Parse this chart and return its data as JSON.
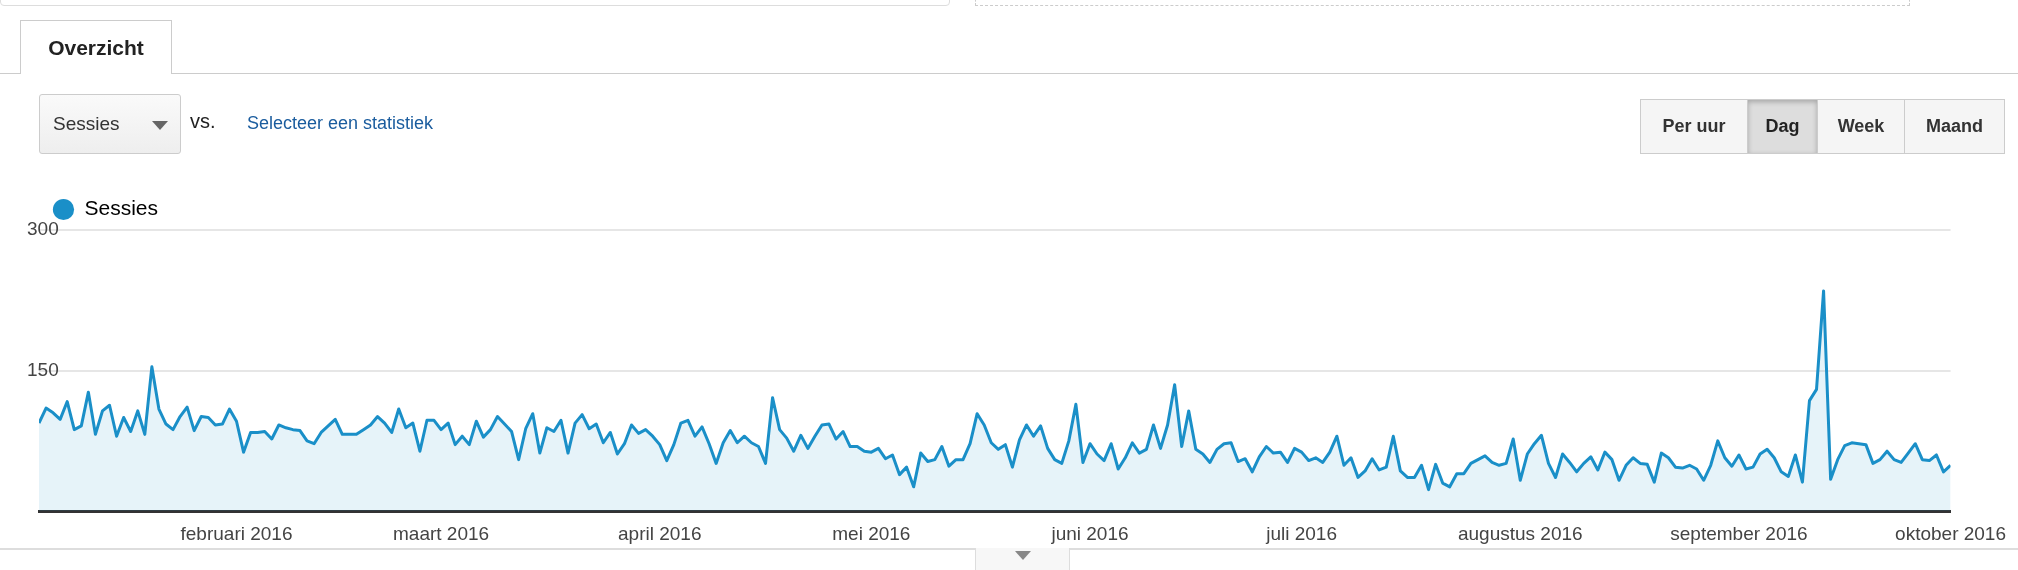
{
  "chart_data": {
    "type": "area",
    "annotations": [
      "Overzicht",
      "Sessies",
      "vs.",
      "Selecteer een statistiek",
      "Per uur",
      "Dag",
      "Week",
      "Maand"
    ],
    "x": [
      "2016-01-04",
      "2016-01-05",
      "2016-01-06",
      "2016-01-07",
      "2016-01-08",
      "2016-01-09",
      "2016-01-10",
      "2016-01-11",
      "2016-01-12",
      "2016-01-13",
      "2016-01-14",
      "2016-01-15",
      "2016-01-16",
      "2016-01-17",
      "2016-01-18",
      "2016-01-19",
      "2016-01-20",
      "2016-01-21",
      "2016-01-22",
      "2016-01-23",
      "2016-01-24",
      "2016-01-25",
      "2016-01-26",
      "2016-01-27",
      "2016-01-28",
      "2016-01-29",
      "2016-01-30",
      "2016-01-31",
      "2016-02-01",
      "2016-02-02",
      "2016-02-03",
      "2016-02-04",
      "2016-02-05",
      "2016-02-06",
      "2016-02-07",
      "2016-02-08",
      "2016-02-09",
      "2016-02-10",
      "2016-02-11",
      "2016-02-12",
      "2016-02-13",
      "2016-02-14",
      "2016-02-15",
      "2016-02-16",
      "2016-02-17",
      "2016-02-18",
      "2016-02-19",
      "2016-02-20",
      "2016-02-21",
      "2016-02-22",
      "2016-02-23",
      "2016-02-24",
      "2016-02-25",
      "2016-02-26",
      "2016-02-27",
      "2016-02-28",
      "2016-02-29",
      "2016-03-01",
      "2016-03-02",
      "2016-03-03",
      "2016-03-04",
      "2016-03-05",
      "2016-03-06",
      "2016-03-07",
      "2016-03-08",
      "2016-03-09",
      "2016-03-10",
      "2016-03-11",
      "2016-03-12",
      "2016-03-13",
      "2016-03-14",
      "2016-03-15",
      "2016-03-16",
      "2016-03-17",
      "2016-03-18",
      "2016-03-19",
      "2016-03-20",
      "2016-03-21",
      "2016-03-22",
      "2016-03-23",
      "2016-03-24",
      "2016-03-25",
      "2016-03-26",
      "2016-03-27",
      "2016-03-28",
      "2016-03-29",
      "2016-03-30",
      "2016-03-31",
      "2016-04-01",
      "2016-04-02",
      "2016-04-03",
      "2016-04-04",
      "2016-04-05",
      "2016-04-06",
      "2016-04-07",
      "2016-04-08",
      "2016-04-09",
      "2016-04-10",
      "2016-04-11",
      "2016-04-12",
      "2016-04-13",
      "2016-04-14",
      "2016-04-15",
      "2016-04-16",
      "2016-04-17",
      "2016-04-18",
      "2016-04-19",
      "2016-04-20",
      "2016-04-21",
      "2016-04-22",
      "2016-04-23",
      "2016-04-24",
      "2016-04-25",
      "2016-04-26",
      "2016-04-27",
      "2016-04-28",
      "2016-04-29",
      "2016-04-30",
      "2016-05-01",
      "2016-05-02",
      "2016-05-03",
      "2016-05-04",
      "2016-05-05",
      "2016-05-06",
      "2016-05-07",
      "2016-05-08",
      "2016-05-09",
      "2016-05-10",
      "2016-05-11",
      "2016-05-12",
      "2016-05-13",
      "2016-05-14",
      "2016-05-15",
      "2016-05-16",
      "2016-05-17",
      "2016-05-18",
      "2016-05-19",
      "2016-05-20",
      "2016-05-21",
      "2016-05-22",
      "2016-05-23",
      "2016-05-24",
      "2016-05-25",
      "2016-05-26",
      "2016-05-27",
      "2016-05-28",
      "2016-05-29",
      "2016-05-30",
      "2016-05-31",
      "2016-06-01",
      "2016-06-02",
      "2016-06-03",
      "2016-06-04",
      "2016-06-05",
      "2016-06-06",
      "2016-06-07",
      "2016-06-08",
      "2016-06-09",
      "2016-06-10",
      "2016-06-11",
      "2016-06-12",
      "2016-06-13",
      "2016-06-14",
      "2016-06-15",
      "2016-06-16",
      "2016-06-17",
      "2016-06-18",
      "2016-06-19",
      "2016-06-20",
      "2016-06-21",
      "2016-06-22",
      "2016-06-23",
      "2016-06-24",
      "2016-06-25",
      "2016-06-26",
      "2016-06-27",
      "2016-06-28",
      "2016-06-29",
      "2016-06-30",
      "2016-07-01",
      "2016-07-02",
      "2016-07-03",
      "2016-07-04",
      "2016-07-05",
      "2016-07-06",
      "2016-07-07",
      "2016-07-08",
      "2016-07-09",
      "2016-07-10",
      "2016-07-11",
      "2016-07-12",
      "2016-07-13",
      "2016-07-14",
      "2016-07-15",
      "2016-07-16",
      "2016-07-17",
      "2016-07-18",
      "2016-07-19",
      "2016-07-20",
      "2016-07-21",
      "2016-07-22",
      "2016-07-23",
      "2016-07-24",
      "2016-07-25",
      "2016-07-26",
      "2016-07-27",
      "2016-07-28",
      "2016-07-29",
      "2016-07-30",
      "2016-07-31",
      "2016-08-01",
      "2016-08-02",
      "2016-08-03",
      "2016-08-04",
      "2016-08-05",
      "2016-08-06",
      "2016-08-07",
      "2016-08-08",
      "2016-08-09",
      "2016-08-10",
      "2016-08-11",
      "2016-08-12",
      "2016-08-13",
      "2016-08-14",
      "2016-08-15",
      "2016-08-16",
      "2016-08-17",
      "2016-08-18",
      "2016-08-19",
      "2016-08-20",
      "2016-08-21",
      "2016-08-22",
      "2016-08-23",
      "2016-08-24",
      "2016-08-25",
      "2016-08-26",
      "2016-08-27",
      "2016-08-28",
      "2016-08-29",
      "2016-08-30",
      "2016-08-31",
      "2016-09-01",
      "2016-09-02",
      "2016-09-03",
      "2016-09-04",
      "2016-09-05",
      "2016-09-06",
      "2016-09-07",
      "2016-09-08",
      "2016-09-09",
      "2016-09-10",
      "2016-09-11",
      "2016-09-12",
      "2016-09-13",
      "2016-09-14",
      "2016-09-15",
      "2016-09-16",
      "2016-09-17",
      "2016-09-18",
      "2016-09-19",
      "2016-09-20",
      "2016-09-21",
      "2016-09-22",
      "2016-09-23",
      "2016-09-24",
      "2016-09-25",
      "2016-09-26",
      "2016-09-27",
      "2016-09-28",
      "2016-09-29",
      "2016-09-30",
      "2016-10-01"
    ],
    "series": [
      {
        "name": "Sessies",
        "color": "#1a8fc8",
        "values": [
          94,
          110,
          105,
          98,
          117,
          87,
          91,
          127,
          82,
          107,
          113,
          80,
          100,
          85,
          107,
          82,
          154,
          109,
          93,
          87,
          101,
          111,
          86,
          101,
          100,
          92,
          93,
          109,
          96,
          63,
          84,
          84,
          85,
          77,
          92,
          89,
          87,
          86,
          75,
          72,
          84,
          91,
          98,
          82,
          82,
          82,
          87,
          92,
          101,
          94,
          84,
          109,
          89,
          94,
          64,
          97,
          97,
          87,
          94,
          71,
          80,
          71,
          96,
          79,
          87,
          101,
          93,
          85,
          55,
          88,
          104,
          62,
          89,
          85,
          97,
          62,
          94,
          103,
          88,
          93,
          73,
          84,
          61,
          72,
          92,
          83,
          87,
          80,
          71,
          54,
          71,
          94,
          97,
          80,
          90,
          72,
          51,
          73,
          86,
          73,
          80,
          73,
          69,
          51,
          121,
          87,
          78,
          64,
          81,
          67,
          80,
          92,
          93,
          77,
          85,
          69,
          69,
          64,
          63,
          67,
          56,
          60,
          39,
          47,
          26,
          62,
          53,
          55,
          69,
          48,
          55,
          55,
          72,
          104,
          92,
          73,
          66,
          71,
          47,
          76,
          92,
          80,
          91,
          67,
          55,
          51,
          75,
          114,
          52,
          72,
          61,
          54,
          72,
          45,
          57,
          73,
          62,
          66,
          92,
          67,
          92,
          135,
          69,
          107,
          66,
          61,
          52,
          66,
          72,
          73,
          53,
          56,
          42,
          58,
          69,
          62,
          63,
          52,
          67,
          63,
          54,
          57,
          52,
          63,
          80,
          49,
          57,
          36,
          43,
          56,
          44,
          47,
          80,
          43,
          36,
          36,
          49,
          23,
          50,
          30,
          26,
          40,
          40,
          51,
          55,
          59,
          52,
          49,
          51,
          77,
          33,
          61,
          72,
          81,
          51,
          36,
          61,
          52,
          42,
          51,
          58,
          44,
          63,
          55,
          33,
          49,
          57,
          51,
          50,
          31,
          62,
          57,
          47,
          46,
          49,
          45,
          33,
          49,
          75,
          57,
          48,
          60,
          45,
          47,
          61,
          66,
          57,
          42,
          37,
          60,
          31,
          118,
          130,
          235,
          34,
          55,
          70,
          73,
          72,
          71,
          51,
          55,
          64,
          55,
          52,
          62,
          72,
          55,
          54,
          60,
          42,
          49
        ]
      }
    ],
    "xlim": [
      "2016-01-04",
      "2016-10-01"
    ],
    "xticks": [
      {
        "value": "2016-02-01",
        "label": "februari 2016"
      },
      {
        "value": "2016-03-01",
        "label": "maart 2016"
      },
      {
        "value": "2016-04-01",
        "label": "april 2016"
      },
      {
        "value": "2016-05-01",
        "label": "mei 2016"
      },
      {
        "value": "2016-06-01",
        "label": "juni 2016"
      },
      {
        "value": "2016-07-01",
        "label": "juli 2016"
      },
      {
        "value": "2016-08-01",
        "label": "augustus 2016"
      },
      {
        "value": "2016-09-01",
        "label": "september 2016"
      },
      {
        "value": "2016-10-01",
        "label": "oktober 2016"
      }
    ],
    "ylim": [
      0,
      300
    ],
    "yticks": [
      150,
      300
    ],
    "grid": "y",
    "legend": "top left",
    "marker": "none",
    "line_style": "solid"
  }
}
